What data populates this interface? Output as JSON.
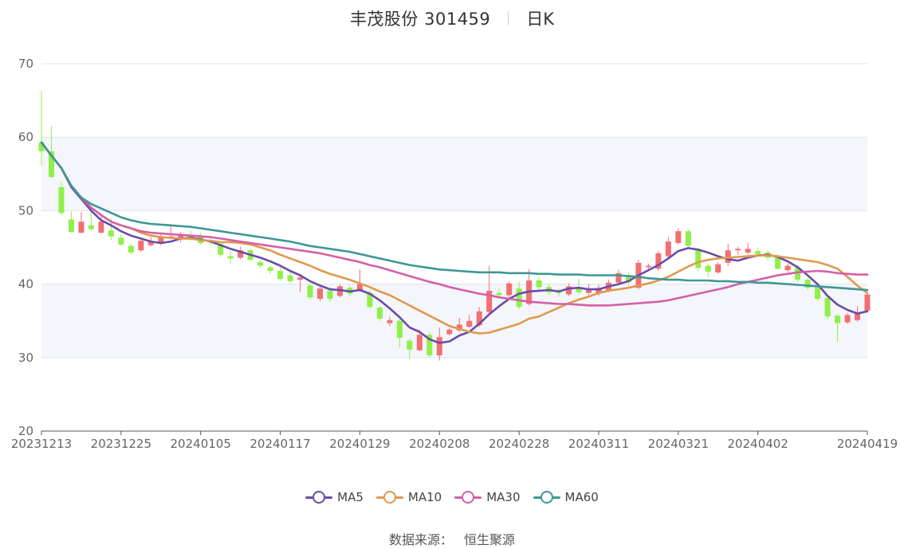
{
  "header": {
    "stock": "丰茂股份 301459",
    "period": "日K"
  },
  "source": {
    "label": "数据来源：",
    "provider": "恒生聚源"
  },
  "colors": {
    "up": "#f26f72",
    "down": "#8ff04a",
    "grid": "#dde3ee",
    "band": "#f4f6fb",
    "MA5": "#6a4ca8",
    "MA10": "#e0994c",
    "MA30": "#d460a6",
    "MA60": "#3e9795"
  },
  "chart_data": {
    "type": "candlestick",
    "title": "丰茂股份 301459 日K",
    "ylim": [
      20,
      70
    ],
    "yticks": [
      20,
      30,
      40,
      50,
      60,
      70
    ],
    "xtick_labels": [
      "20231213",
      "20231225",
      "20240105",
      "20240117",
      "20240129",
      "20240208",
      "20240228",
      "20240311",
      "20240321",
      "20240402",
      "20240419"
    ],
    "xtick_index": [
      0,
      8,
      16,
      24,
      32,
      40,
      48,
      56,
      64,
      72,
      83
    ],
    "legend": [
      "MA5",
      "MA10",
      "MA30",
      "MA60"
    ],
    "legend_position": "bottom",
    "candles": [
      [
        59.3,
        58.1,
        66.3,
        56.1
      ],
      [
        58.1,
        54.6,
        61.5,
        54.4
      ],
      [
        53.2,
        49.7,
        54.0,
        49.4
      ],
      [
        48.8,
        47.1,
        49.9,
        47.0
      ],
      [
        47.0,
        48.5,
        49.8,
        46.9
      ],
      [
        48.0,
        47.5,
        50.4,
        47.3
      ],
      [
        47.0,
        48.5,
        49.2,
        46.9
      ],
      [
        47.3,
        46.5,
        49.0,
        46.0
      ],
      [
        46.3,
        45.4,
        46.8,
        45.2
      ],
      [
        45.2,
        44.3,
        45.5,
        44.0
      ],
      [
        44.6,
        45.9,
        46.1,
        44.4
      ],
      [
        45.3,
        45.8,
        46.4,
        45.1
      ],
      [
        45.5,
        46.5,
        47.0,
        45.3
      ],
      [
        46.3,
        46.5,
        48.0,
        46.1
      ],
      [
        46.1,
        46.8,
        47.1,
        45.7
      ],
      [
        46.6,
        46.2,
        47.3,
        45.9
      ],
      [
        46.5,
        45.6,
        47.0,
        45.4
      ],
      [
        46.0,
        45.7,
        46.6,
        45.3
      ],
      [
        45.5,
        44.0,
        45.7,
        43.7
      ],
      [
        43.8,
        43.5,
        44.5,
        42.8
      ],
      [
        43.6,
        44.6,
        45.1,
        43.4
      ],
      [
        44.6,
        43.3,
        44.8,
        43.1
      ],
      [
        43.0,
        42.5,
        43.3,
        42.2
      ],
      [
        42.3,
        41.8,
        42.5,
        41.4
      ],
      [
        41.8,
        40.7,
        42.3,
        40.5
      ],
      [
        41.2,
        40.4,
        41.8,
        40.1
      ],
      [
        40.6,
        40.9,
        41.3,
        38.9
      ],
      [
        39.8,
        38.2,
        40.1,
        37.9
      ],
      [
        38.0,
        39.4,
        39.8,
        37.7
      ],
      [
        39.1,
        38.0,
        39.5,
        37.6
      ],
      [
        38.4,
        39.7,
        40.0,
        38.2
      ],
      [
        39.5,
        38.7,
        39.8,
        38.3
      ],
      [
        39.2,
        40.0,
        42.0,
        39.0
      ],
      [
        38.8,
        36.9,
        39.2,
        36.7
      ],
      [
        36.8,
        35.3,
        37.0,
        35.0
      ],
      [
        34.7,
        35.1,
        35.6,
        34.3
      ],
      [
        35.0,
        32.7,
        35.3,
        31.4
      ],
      [
        32.3,
        31.1,
        32.6,
        29.8
      ],
      [
        31.0,
        33.1,
        33.8,
        30.9
      ],
      [
        33.1,
        30.3,
        33.4,
        30.1
      ],
      [
        30.3,
        32.8,
        34.1,
        29.6
      ],
      [
        33.2,
        33.8,
        34.0,
        33.0
      ],
      [
        33.7,
        34.5,
        35.4,
        33.5
      ],
      [
        34.2,
        35.0,
        35.8,
        34.0
      ],
      [
        34.4,
        36.3,
        36.9,
        34.2
      ],
      [
        36.2,
        39.1,
        42.5,
        36.0
      ],
      [
        38.8,
        38.5,
        39.4,
        38.2
      ],
      [
        38.5,
        40.1,
        40.4,
        38.2
      ],
      [
        39.4,
        36.9,
        40.3,
        36.6
      ],
      [
        37.3,
        40.5,
        42.0,
        37.1
      ],
      [
        40.5,
        39.6,
        41.0,
        39.3
      ],
      [
        39.6,
        38.9,
        40.0,
        38.5
      ],
      [
        38.9,
        38.8,
        39.4,
        38.3
      ],
      [
        38.6,
        39.7,
        40.1,
        38.4
      ],
      [
        39.6,
        38.9,
        40.7,
        38.6
      ],
      [
        38.8,
        39.4,
        40.0,
        38.5
      ],
      [
        38.7,
        39.5,
        39.9,
        38.4
      ],
      [
        39.2,
        40.2,
        40.6,
        38.9
      ],
      [
        40.2,
        41.5,
        42.0,
        40.0
      ],
      [
        41.2,
        40.3,
        41.6,
        39.8
      ],
      [
        39.5,
        42.9,
        43.3,
        39.3
      ],
      [
        42.3,
        42.5,
        42.8,
        42.0
      ],
      [
        42.1,
        44.2,
        44.5,
        41.8
      ],
      [
        43.8,
        45.8,
        46.4,
        43.5
      ],
      [
        45.6,
        47.2,
        47.6,
        45.4
      ],
      [
        47.2,
        45.2,
        47.5,
        44.9
      ],
      [
        44.7,
        42.2,
        45.0,
        41.8
      ],
      [
        42.5,
        41.7,
        42.8,
        40.9
      ],
      [
        41.6,
        42.7,
        43.0,
        41.4
      ],
      [
        42.9,
        44.6,
        45.5,
        42.5
      ],
      [
        44.6,
        44.8,
        45.1,
        44.0
      ],
      [
        44.3,
        44.8,
        45.6,
        44.1
      ],
      [
        44.5,
        44.1,
        44.9,
        43.9
      ],
      [
        44.3,
        43.6,
        44.6,
        43.3
      ],
      [
        43.7,
        42.1,
        44.0,
        41.9
      ],
      [
        41.9,
        42.5,
        42.8,
        41.6
      ],
      [
        42.3,
        40.6,
        42.6,
        40.3
      ],
      [
        40.6,
        39.5,
        40.8,
        39.2
      ],
      [
        39.5,
        38.0,
        39.8,
        37.7
      ],
      [
        38.1,
        35.6,
        38.3,
        35.2
      ],
      [
        35.7,
        34.7,
        35.9,
        32.2
      ],
      [
        34.8,
        35.8,
        36.1,
        34.6
      ],
      [
        35.1,
        36.2,
        37.0,
        34.9
      ],
      [
        36.4,
        38.6,
        38.9,
        36.3
      ]
    ],
    "series": [
      {
        "name": "MA5",
        "values": [
          59.3,
          57.5,
          55.8,
          53.2,
          51.6,
          50.0,
          48.7,
          48.0,
          47.2,
          46.6,
          46.2,
          45.8,
          45.6,
          45.8,
          46.2,
          46.3,
          46.1,
          45.8,
          45.3,
          44.8,
          44.4,
          44.0,
          43.6,
          43.1,
          42.5,
          41.8,
          41.2,
          40.4,
          39.8,
          39.3,
          39.2,
          39.0,
          39.2,
          38.7,
          37.8,
          36.7,
          35.5,
          34.1,
          33.5,
          32.5,
          32.0,
          32.2,
          33.0,
          33.5,
          34.6,
          35.9,
          37.0,
          38.0,
          38.7,
          39.0,
          39.1,
          39.2,
          39.0,
          39.4,
          39.5,
          39.3,
          39.3,
          39.7,
          40.0,
          40.4,
          41.2,
          41.9,
          42.6,
          43.5,
          44.5,
          44.9,
          44.7,
          44.3,
          43.8,
          43.4,
          43.2,
          43.6,
          43.9,
          44.0,
          43.7,
          43.1,
          42.3,
          41.2,
          40.0,
          38.4,
          37.2,
          36.5,
          36.0,
          36.3
        ]
      },
      {
        "name": "MA10",
        "values": [
          59.3,
          57.5,
          55.8,
          53.4,
          51.8,
          50.4,
          49.4,
          48.5,
          48.0,
          47.6,
          47.0,
          46.6,
          46.4,
          46.3,
          46.2,
          46.2,
          46.0,
          45.9,
          45.7,
          45.7,
          45.6,
          45.4,
          45.0,
          44.6,
          44.0,
          43.5,
          43.0,
          42.5,
          41.9,
          41.4,
          41.0,
          40.6,
          40.1,
          39.6,
          39.0,
          38.5,
          37.8,
          37.1,
          36.4,
          35.7,
          35.0,
          34.3,
          33.9,
          33.5,
          33.3,
          33.4,
          33.8,
          34.2,
          34.6,
          35.3,
          35.6,
          36.2,
          36.8,
          37.4,
          37.9,
          38.3,
          38.8,
          39.1,
          39.3,
          39.5,
          39.8,
          40.1,
          40.5,
          41.0,
          41.7,
          42.4,
          43.0,
          43.3,
          43.5,
          43.6,
          43.7,
          43.8,
          43.9,
          43.9,
          43.8,
          43.6,
          43.4,
          43.2,
          43.0,
          42.6,
          42.1,
          41.0,
          39.8,
          38.8
        ]
      },
      {
        "name": "MA30",
        "values": [
          59.3,
          57.5,
          55.8,
          53.4,
          51.8,
          50.4,
          49.4,
          48.5,
          48.0,
          47.6,
          47.2,
          47.0,
          46.9,
          46.8,
          46.7,
          46.6,
          46.5,
          46.4,
          46.2,
          46.0,
          45.8,
          45.6,
          45.4,
          45.2,
          45.0,
          44.8,
          44.6,
          44.4,
          44.2,
          43.9,
          43.6,
          43.3,
          43.0,
          42.6,
          42.3,
          41.9,
          41.5,
          41.1,
          40.7,
          40.3,
          40.0,
          39.6,
          39.3,
          39.0,
          38.7,
          38.5,
          38.2,
          38.0,
          37.8,
          37.6,
          37.5,
          37.4,
          37.3,
          37.3,
          37.2,
          37.1,
          37.1,
          37.1,
          37.2,
          37.3,
          37.4,
          37.5,
          37.6,
          37.8,
          38.1,
          38.4,
          38.7,
          39.0,
          39.3,
          39.6,
          40.0,
          40.3,
          40.6,
          40.9,
          41.2,
          41.4,
          41.6,
          41.7,
          41.8,
          41.7,
          41.5,
          41.4,
          41.3,
          41.3
        ]
      },
      {
        "name": "MA60",
        "values": [
          59.3,
          57.5,
          55.8,
          53.4,
          51.8,
          50.9,
          50.3,
          49.7,
          49.1,
          48.7,
          48.4,
          48.2,
          48.1,
          48.0,
          47.9,
          47.8,
          47.6,
          47.4,
          47.2,
          47.0,
          46.8,
          46.6,
          46.4,
          46.2,
          46.0,
          45.8,
          45.5,
          45.2,
          45.0,
          44.8,
          44.6,
          44.4,
          44.1,
          43.8,
          43.5,
          43.2,
          42.9,
          42.6,
          42.4,
          42.2,
          42.0,
          41.9,
          41.8,
          41.7,
          41.6,
          41.6,
          41.6,
          41.5,
          41.5,
          41.5,
          41.4,
          41.4,
          41.3,
          41.3,
          41.3,
          41.2,
          41.2,
          41.2,
          41.2,
          41.1,
          41.0,
          40.8,
          40.7,
          40.6,
          40.6,
          40.5,
          40.5,
          40.5,
          40.4,
          40.4,
          40.3,
          40.3,
          40.2,
          40.2,
          40.1,
          40.0,
          39.9,
          39.8,
          39.7,
          39.6,
          39.5,
          39.4,
          39.3,
          39.2
        ]
      }
    ]
  }
}
